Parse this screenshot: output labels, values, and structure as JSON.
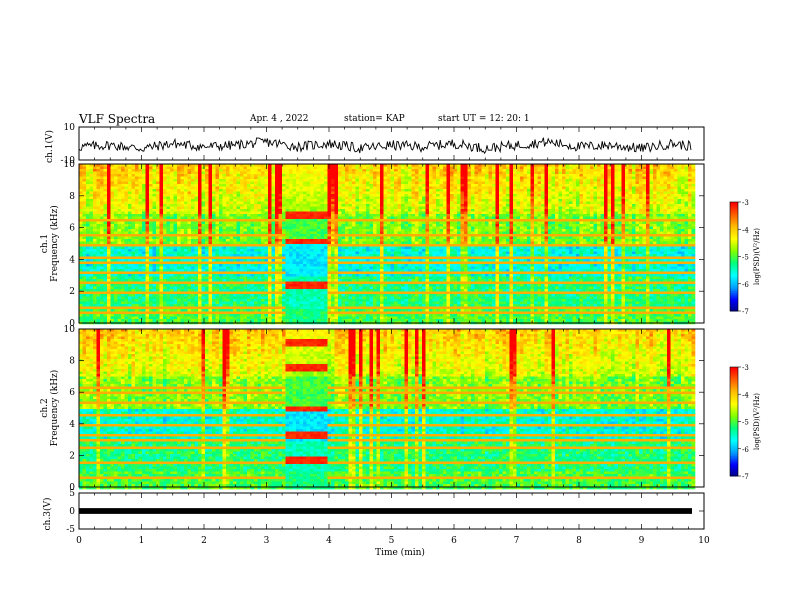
{
  "header": {
    "title": "VLF Spectra",
    "date": "Apr. 4 , 2022",
    "station": "station= KAP",
    "start": "start UT =  12: 20: 1"
  },
  "colors": {
    "trace": "#000000",
    "axis": "#000000",
    "colormap": [
      "#000080",
      "#0000ff",
      "#00a0ff",
      "#00ffff",
      "#00ff80",
      "#80ff00",
      "#ffff00",
      "#ffc000",
      "#ff6000",
      "#ff0000",
      "#ffffff"
    ]
  },
  "chart_data": [
    {
      "type": "line",
      "ylabel": "ch.1(V)",
      "ylim": [
        -10,
        10
      ],
      "ytick_labels": [
        "10",
        "-10"
      ],
      "xlim": [
        0,
        9.85
      ],
      "note_series": "noisy waveform oscillating roughly between -6 and 4 V",
      "series": [
        {
          "x": [
            0,
            0.5,
            1,
            1.5,
            2,
            2.5,
            3,
            3.5,
            4,
            4.5,
            5,
            5.5,
            6,
            6.5,
            7,
            7.5,
            8,
            8.5,
            9,
            9.5,
            9.85
          ],
          "values": [
            -2,
            -1,
            -3,
            0,
            -2,
            -1,
            1,
            -2,
            0,
            -3,
            -1,
            -2,
            0,
            -3,
            -1,
            1,
            -2,
            -1,
            -3,
            0,
            -2
          ]
        }
      ]
    },
    {
      "type": "heatmap",
      "ylabel": "ch.1\nFrequency (kHz)",
      "ylim": [
        0,
        10
      ],
      "ytick_labels": [
        "0",
        "2",
        "4",
        "6",
        "8",
        "10"
      ],
      "xlim": [
        0,
        9.85
      ],
      "colorbar": {
        "label": "log(PSD)(V²/Hz)",
        "range": [
          -7,
          -3
        ],
        "tick_labels": [
          "-3",
          "-4",
          "-5",
          "-6",
          "-7"
        ]
      },
      "features": {
        "burst_interval_min": [
          3.3,
          3.95
        ],
        "burst_bands_khz": [
          6.8,
          5.2,
          2.4
        ],
        "horizontal_lines_khz": [
          0.7,
          1.0,
          2.0,
          2.6,
          3.2,
          3.8,
          4.2,
          5.0,
          5.6,
          6.5
        ]
      }
    },
    {
      "type": "heatmap",
      "ylabel": "ch.2\nFrequency (kHz)",
      "ylim": [
        0,
        10
      ],
      "ytick_labels": [
        "0",
        "2",
        "4",
        "6",
        "8",
        "10"
      ],
      "xlim": [
        0,
        9.85
      ],
      "colorbar": {
        "label": "log(PSD)(V²/Hz)",
        "range": [
          -7,
          -3
        ],
        "tick_labels": [
          "-3",
          "-4",
          "-5",
          "-6",
          "-7"
        ]
      },
      "features": {
        "burst_interval_min": [
          3.3,
          3.95
        ],
        "burst_bands_khz": [
          9.2,
          7.6,
          5.0,
          3.4,
          1.8
        ],
        "horizontal_lines_khz": [
          0.7,
          1.6,
          2.6,
          3.0,
          3.4,
          4.0,
          4.6,
          5.4,
          6.0,
          6.4
        ]
      }
    },
    {
      "type": "line",
      "ylabel": "ch.3(V)",
      "ylim": [
        -5,
        5
      ],
      "ytick_labels": [
        "5",
        "0",
        "-5"
      ],
      "xlim": [
        0,
        9.85
      ],
      "xlabel": "Time (min)",
      "xtick_labels": [
        "0",
        "1",
        "2",
        "3",
        "4",
        "5",
        "6",
        "7",
        "8",
        "9",
        "10"
      ],
      "note_series": "flat dense band between about -0.8 and 0.8 V",
      "series": [
        {
          "x": [
            0,
            9.85
          ],
          "values": [
            0,
            0
          ]
        }
      ]
    }
  ]
}
